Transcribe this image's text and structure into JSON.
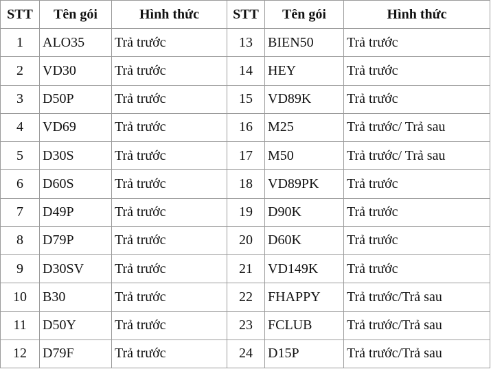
{
  "table": {
    "header": [
      "STT",
      "Tên gói",
      "Hình thức",
      "STT",
      "Tên gói",
      "Hình thức"
    ],
    "rows": [
      [
        "1",
        "ALO35",
        "Trả trước",
        "13",
        "BIEN50",
        "Trả trước"
      ],
      [
        "2",
        "VD30",
        "Trả trước",
        "14",
        "HEY",
        "Trả trước"
      ],
      [
        "3",
        "D50P",
        "Trả trước",
        "15",
        "VD89K",
        "Trả trước"
      ],
      [
        "4",
        "VD69",
        "Trả trước",
        "16",
        "M25",
        "Trả trước/ Trả sau"
      ],
      [
        "5",
        "D30S",
        "Trả trước",
        "17",
        "M50",
        "Trả trước/ Trả sau"
      ],
      [
        "6",
        "D60S",
        "Trả trước",
        "18",
        "VD89PK",
        "Trả trước"
      ],
      [
        "7",
        "D49P",
        "Trả trước",
        "19",
        "D90K",
        "Trả trước"
      ],
      [
        "8",
        "D79P",
        "Trả trước",
        "20",
        "D60K",
        "Trả trước"
      ],
      [
        "9",
        "D30SV",
        "Trả trước",
        "21",
        "VD149K",
        "Trả trước"
      ],
      [
        "10",
        "B30",
        "Trả trước",
        "22",
        "FHAPPY",
        "Trả trước/Trả sau"
      ],
      [
        "11",
        "D50Y",
        "Trả trước",
        "23",
        "FCLUB",
        "Trả trước/Trả sau"
      ],
      [
        "12",
        "D79F",
        "Trả trước",
        "24",
        "D15P",
        "Trả trước/Trả sau"
      ]
    ]
  }
}
